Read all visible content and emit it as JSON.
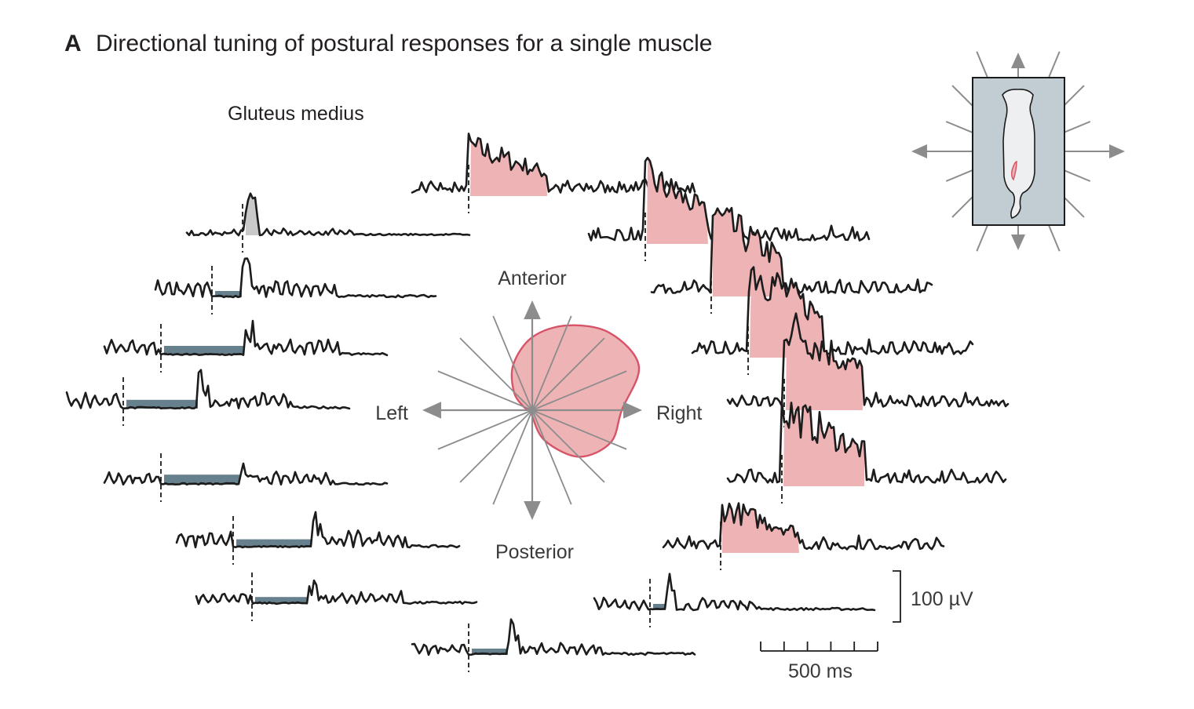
{
  "panel": {
    "letter": "A",
    "title": "Directional tuning of postural responses for a single muscle"
  },
  "muscle_label": "Gluteus medius",
  "directions": {
    "anterior": "Anterior",
    "posterior": "Posterior",
    "left": "Left",
    "right": "Right"
  },
  "scale_bars": {
    "amplitude": "100 µV",
    "time": "500 ms",
    "time_ticks": 5
  },
  "colors": {
    "excitation": "#eeb3b5",
    "excitation_edge": "#d75468",
    "inhibition": "#66808d",
    "neutral_burst": "#c9c9c9",
    "platform": "#c2ccd3",
    "arrows": "#8c8c8c",
    "trace": "#1c1c1c"
  },
  "tuning": {
    "spoke_count": 16,
    "radii_by_direction_deg": [
      {
        "angle": 0,
        "r": 0.76
      },
      {
        "angle": 22.5,
        "r": 0.98
      },
      {
        "angle": 45,
        "r": 0.93
      },
      {
        "angle": 67.5,
        "r": 0.78
      },
      {
        "angle": 90,
        "r": 0.62
      },
      {
        "angle": 112.5,
        "r": 0.42
      },
      {
        "angle": 135,
        "r": 0.22
      },
      {
        "angle": 157.5,
        "r": 0.08
      },
      {
        "angle": 180,
        "r": 0.02
      },
      {
        "angle": 202.5,
        "r": 0.0
      },
      {
        "angle": 225,
        "r": 0.0
      },
      {
        "angle": 247.5,
        "r": 0.0
      },
      {
        "angle": 270,
        "r": 0.05
      },
      {
        "angle": 292.5,
        "r": 0.28
      },
      {
        "angle": 315,
        "r": 0.56
      },
      {
        "angle": 337.5,
        "r": 0.72
      }
    ]
  },
  "traces": [
    {
      "id": "anterior",
      "response": "excitation",
      "magnitude": 0.55
    },
    {
      "id": "anterior-right-1",
      "response": "excitation",
      "magnitude": 0.75
    },
    {
      "id": "anterior-right-2",
      "response": "excitation",
      "magnitude": 0.9
    },
    {
      "id": "anterior-right-3",
      "response": "excitation",
      "magnitude": 1.0
    },
    {
      "id": "right",
      "response": "excitation",
      "magnitude": 0.95
    },
    {
      "id": "posterior-right-1",
      "response": "excitation",
      "magnitude": 0.85
    },
    {
      "id": "posterior-right-2",
      "response": "excitation",
      "magnitude": 0.5
    },
    {
      "id": "posterior-right-3",
      "response": "inhibition",
      "magnitude": 0.1
    },
    {
      "id": "posterior",
      "response": "inhibition",
      "magnitude": 0.35
    },
    {
      "id": "posterior-left-1",
      "response": "inhibition",
      "magnitude": 0.55
    },
    {
      "id": "posterior-left-2",
      "response": "inhibition",
      "magnitude": 0.65
    },
    {
      "id": "posterior-left-3",
      "response": "inhibition",
      "magnitude": 0.8
    },
    {
      "id": "left",
      "response": "inhibition",
      "magnitude": 0.7
    },
    {
      "id": "anterior-left-1",
      "response": "inhibition",
      "magnitude": 0.75
    },
    {
      "id": "anterior-left-2",
      "response": "inhibition",
      "magnitude": 0.2
    },
    {
      "id": "anterior-left-3",
      "response": "neutral",
      "magnitude": 0.15
    }
  ]
}
